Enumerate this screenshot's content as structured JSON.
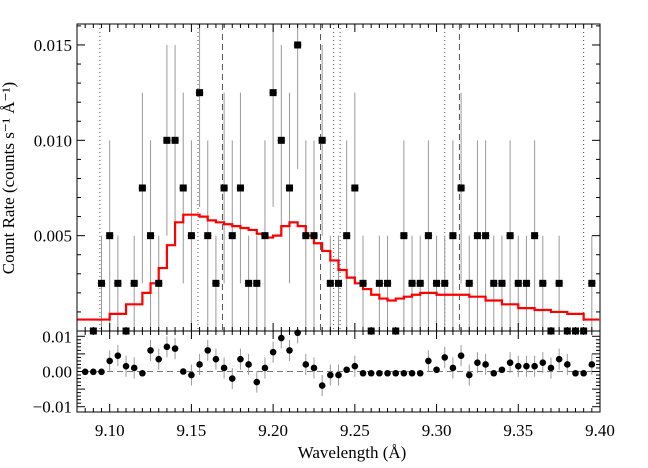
{
  "chart_data": {
    "type": "line",
    "xlabel": "Wavelength (Å)",
    "ylabel": "Count Rate (counts s⁻¹ Å⁻¹)",
    "xlim": [
      9.08,
      9.4
    ],
    "ylim": [
      0.0,
      0.0161
    ],
    "resid_ylim": [
      -0.0115,
      0.0115
    ],
    "xticks": [
      "9.10",
      "9.15",
      "9.20",
      "9.25",
      "9.30",
      "9.35",
      "9.40"
    ],
    "yticks": [
      "0.005",
      "0.010",
      "0.015"
    ],
    "resid_yticks": [
      "0.01",
      "0.00",
      "−0.01"
    ],
    "ytick_values": [
      0.005,
      0.01,
      0.015
    ],
    "resid_ytick_values": [
      0.01,
      0.0,
      -0.01
    ],
    "line_colors": {
      "model": "#ff0000",
      "data": "#000000",
      "errorbars": "#999999",
      "ref_lines": "#555555"
    },
    "vlines_dotted": [
      9.094,
      9.154,
      9.237,
      9.241,
      9.305,
      9.39
    ],
    "vlines_dashed": [
      9.169,
      9.229,
      9.314
    ],
    "series": [
      {
        "role": "model",
        "x": [
          9.08,
          9.09,
          9.1,
          9.11,
          9.12,
          9.125,
          9.13,
          9.135,
          9.14,
          9.145,
          9.15,
          9.155,
          9.16,
          9.165,
          9.17,
          9.175,
          9.18,
          9.185,
          9.19,
          9.195,
          9.2,
          9.205,
          9.21,
          9.215,
          9.22,
          9.225,
          9.23,
          9.235,
          9.24,
          9.245,
          9.25,
          9.255,
          9.26,
          9.265,
          9.27,
          9.275,
          9.28,
          9.285,
          9.29,
          9.295,
          9.3,
          9.31,
          9.32,
          9.33,
          9.34,
          9.35,
          9.36,
          9.37,
          9.38,
          9.39
        ],
        "y": [
          0.0006,
          0.0006,
          0.0009,
          0.0014,
          0.002,
          0.0025,
          0.0033,
          0.0045,
          0.0057,
          0.0061,
          0.0061,
          0.006,
          0.0058,
          0.0057,
          0.0056,
          0.0055,
          0.0054,
          0.0053,
          0.0051,
          0.0049,
          0.005,
          0.0055,
          0.0057,
          0.0055,
          0.005,
          0.0046,
          0.0042,
          0.0037,
          0.0032,
          0.0028,
          0.0025,
          0.0022,
          0.0019,
          0.0017,
          0.0016,
          0.0017,
          0.0018,
          0.0019,
          0.002,
          0.002,
          0.0019,
          0.0019,
          0.0018,
          0.0016,
          0.0014,
          0.0012,
          0.0011,
          0.001,
          0.0009,
          0.0006
        ]
      },
      {
        "role": "data",
        "x": [
          9.09,
          9.095,
          9.1,
          9.105,
          9.11,
          9.115,
          9.12,
          9.125,
          9.13,
          9.135,
          9.14,
          9.145,
          9.15,
          9.155,
          9.16,
          9.165,
          9.17,
          9.175,
          9.18,
          9.185,
          9.19,
          9.195,
          9.2,
          9.205,
          9.21,
          9.215,
          9.22,
          9.225,
          9.23,
          9.235,
          9.24,
          9.245,
          9.25,
          9.255,
          9.26,
          9.265,
          9.27,
          9.275,
          9.28,
          9.285,
          9.29,
          9.295,
          9.3,
          9.305,
          9.31,
          9.315,
          9.32,
          9.325,
          9.33,
          9.335,
          9.34,
          9.345,
          9.35,
          9.355,
          9.36,
          9.365,
          9.37,
          9.375,
          9.38,
          9.385,
          9.39,
          9.395
        ],
        "y": [
          0.0,
          0.0025,
          0.005,
          0.0025,
          0.0,
          0.0025,
          0.0075,
          0.005,
          0.0025,
          0.01,
          0.01,
          0.0075,
          0.005,
          0.0125,
          0.005,
          0.0025,
          0.0075,
          0.005,
          0.0075,
          0.0025,
          0.0025,
          0.005,
          0.0125,
          0.01,
          0.0075,
          0.015,
          0.005,
          0.005,
          0.01,
          0.0025,
          0.0025,
          0.005,
          0.0075,
          0.0025,
          0.0,
          0.0025,
          0.0025,
          0.0,
          0.005,
          0.0025,
          0.0025,
          0.005,
          0.0025,
          0.0025,
          0.005,
          0.0075,
          0.0025,
          0.005,
          0.005,
          0.0025,
          0.0025,
          0.005,
          0.0025,
          0.0025,
          0.005,
          0.0025,
          0.0,
          0.0025,
          0.0,
          0.0,
          0.0,
          0.0025
        ],
        "yerr": [
          0.0,
          0.0025,
          0.005,
          0.0025,
          0.0,
          0.0025,
          0.005,
          0.005,
          0.0025,
          0.005,
          0.005,
          0.005,
          0.005,
          0.006,
          0.005,
          0.0025,
          0.005,
          0.005,
          0.005,
          0.0025,
          0.0025,
          0.005,
          0.006,
          0.005,
          0.005,
          0.0065,
          0.005,
          0.005,
          0.005,
          0.0025,
          0.0025,
          0.005,
          0.005,
          0.0025,
          0.0,
          0.0025,
          0.0025,
          0.0,
          0.005,
          0.0025,
          0.0025,
          0.005,
          0.0025,
          0.0025,
          0.005,
          0.005,
          0.0025,
          0.005,
          0.005,
          0.0025,
          0.0025,
          0.005,
          0.0025,
          0.0025,
          0.005,
          0.0025,
          0.0,
          0.0025,
          0.0,
          0.0,
          0.0,
          0.0025
        ]
      },
      {
        "role": "residuals",
        "x": [
          9.085,
          9.09,
          9.095,
          9.1,
          9.105,
          9.11,
          9.115,
          9.12,
          9.125,
          9.13,
          9.135,
          9.14,
          9.145,
          9.15,
          9.155,
          9.16,
          9.165,
          9.17,
          9.175,
          9.18,
          9.185,
          9.19,
          9.195,
          9.2,
          9.205,
          9.21,
          9.215,
          9.22,
          9.225,
          9.23,
          9.235,
          9.24,
          9.245,
          9.25,
          9.255,
          9.26,
          9.265,
          9.27,
          9.275,
          9.28,
          9.285,
          9.29,
          9.295,
          9.3,
          9.305,
          9.31,
          9.315,
          9.32,
          9.325,
          9.33,
          9.335,
          9.34,
          9.345,
          9.35,
          9.355,
          9.36,
          9.365,
          9.37,
          9.375,
          9.38,
          9.385,
          9.39,
          9.395
        ],
        "y": [
          -0.0001,
          -0.0001,
          -0.0001,
          0.003,
          0.0045,
          0.0015,
          0.001,
          -0.0005,
          0.006,
          0.0035,
          0.007,
          0.0065,
          0.0,
          -0.001,
          0.002,
          0.006,
          0.0035,
          0.001,
          -0.002,
          0.0035,
          0.002,
          -0.003,
          0.001,
          0.0055,
          0.0095,
          0.006,
          0.011,
          0.002,
          0.001,
          -0.004,
          -0.001,
          -0.001,
          0.0005,
          0.0015,
          -0.0005,
          -0.0005,
          -0.0005,
          -0.0005,
          -0.0005,
          -0.0005,
          -0.0005,
          -0.0005,
          0.003,
          0.0005,
          0.004,
          0.001,
          0.0045,
          -0.001,
          0.0025,
          0.002,
          -0.0005,
          0.0005,
          0.0025,
          0.0015,
          0.0015,
          0.0015,
          0.0025,
          0.001,
          0.0035,
          0.002,
          -0.0005,
          -0.0005,
          0.002
        ]
      }
    ]
  }
}
